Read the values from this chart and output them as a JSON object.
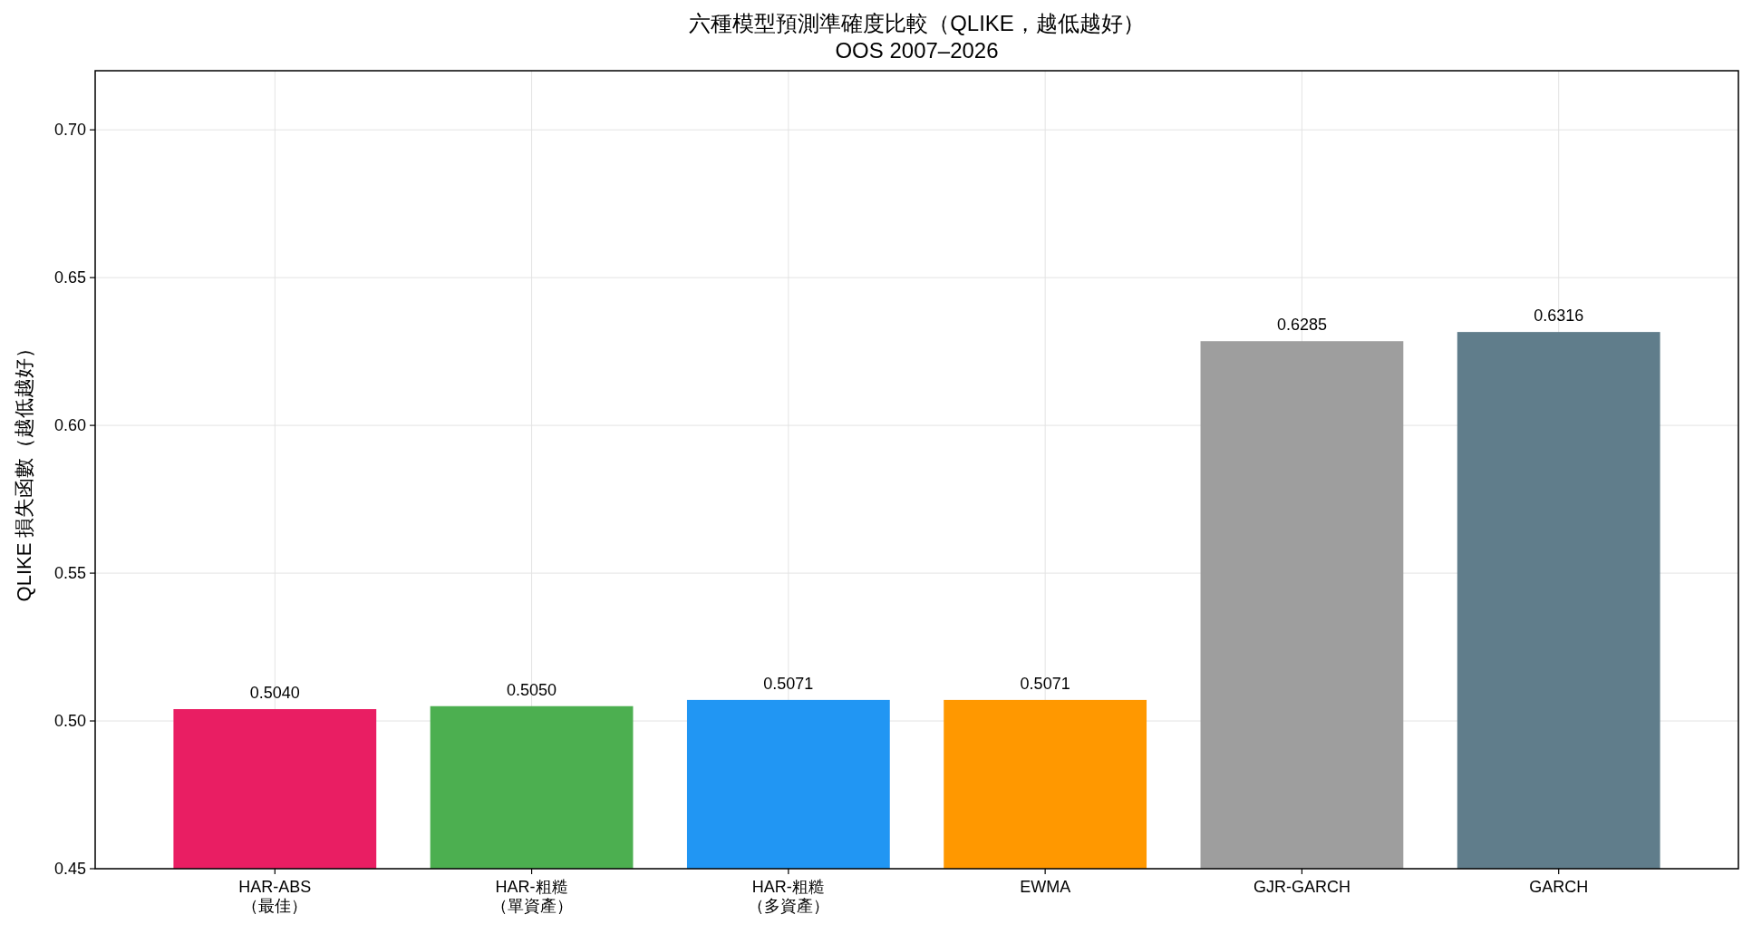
{
  "chart_data": {
    "type": "bar",
    "title": "六種模型預測準確度比較（QLIKE，越低越好）",
    "subtitle": "OOS 2007–2026",
    "ylabel": "QLIKE 損失函數（越低越好）",
    "categories": [
      "HAR-ABS（最佳）",
      "HAR-粗糙（單資產）",
      "HAR-粗糙（多資產）",
      "EWMA",
      "GJR-GARCH",
      "GARCH"
    ],
    "values": [
      0.504,
      0.505,
      0.5071,
      0.5071,
      0.6285,
      0.6316
    ],
    "colors": [
      "#e91e63",
      "#4caf50",
      "#2196f3",
      "#ff9800",
      "#9e9e9e",
      "#607d8b"
    ],
    "value_labels": [
      "0.5040",
      "0.5050",
      "0.5071",
      "0.5071",
      "0.6285",
      "0.6316"
    ],
    "ylim": [
      0.45,
      0.72
    ],
    "yticks": [
      0.45,
      {
        "value": 0.5,
        "label": "0.50"
      },
      0.55,
      {
        "value": 0.6,
        "label": "0.60"
      },
      0.65,
      {
        "value": 0.7,
        "label": "0.70"
      }
    ],
    "grid": true
  }
}
